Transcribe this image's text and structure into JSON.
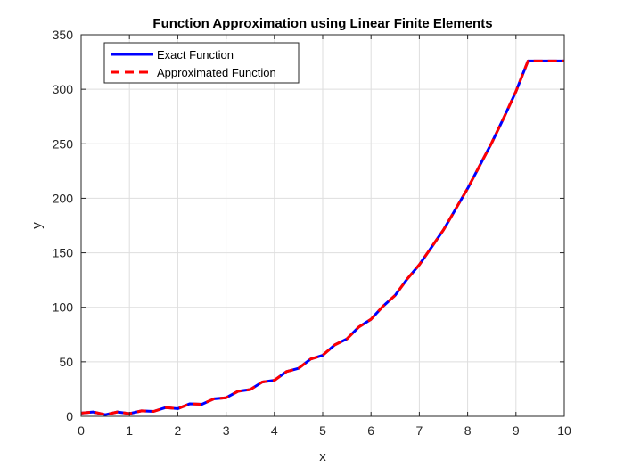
{
  "chart_data": {
    "type": "line",
    "title": "Function Approximation using Linear Finite Elements",
    "xlabel": "x",
    "ylabel": "y",
    "xlim": [
      0,
      10
    ],
    "ylim": [
      0,
      350
    ],
    "xticks": [
      0,
      1,
      2,
      3,
      4,
      5,
      6,
      7,
      8,
      9,
      10
    ],
    "yticks": [
      0,
      50,
      100,
      150,
      200,
      250,
      300,
      350
    ],
    "grid": true,
    "legend_position": "top-left",
    "series": [
      {
        "name": "Exact Function",
        "color": "#0000ff",
        "style": "solid",
        "x": [
          0,
          0.25,
          0.5,
          0.75,
          1,
          1.25,
          1.5,
          1.75,
          2,
          2.25,
          2.5,
          2.75,
          3,
          3.25,
          3.5,
          3.75,
          4,
          4.25,
          4.5,
          4.75,
          5,
          5.25,
          5.5,
          5.75,
          6,
          6.25,
          6.5,
          6.75,
          7,
          7.25,
          7.5,
          7.75,
          8,
          8.25,
          8.5,
          8.75,
          9,
          9.25,
          9.5,
          9.75,
          10
        ],
        "y": [
          3,
          4,
          1.5,
          4,
          2.5,
          5,
          4.5,
          8,
          7,
          11.5,
          11,
          16,
          17,
          23,
          24.5,
          31.5,
          33,
          41,
          44,
          52.5,
          56,
          65.5,
          71,
          82,
          89,
          101,
          111,
          126,
          139,
          155,
          171,
          190,
          209,
          230,
          251,
          274,
          298,
          326,
          326,
          326,
          326
        ]
      },
      {
        "name": "Approximated Function",
        "color": "#ff0000",
        "style": "dashed",
        "x": [
          0,
          0.25,
          0.5,
          0.75,
          1,
          1.25,
          1.5,
          1.75,
          2,
          2.25,
          2.5,
          2.75,
          3,
          3.25,
          3.5,
          3.75,
          4,
          4.25,
          4.5,
          4.75,
          5,
          5.25,
          5.5,
          5.75,
          6,
          6.25,
          6.5,
          6.75,
          7,
          7.25,
          7.5,
          7.75,
          8,
          8.25,
          8.5,
          8.75,
          9,
          9.25,
          9.5,
          9.75,
          10
        ],
        "y": [
          3,
          4,
          1.5,
          4,
          2.5,
          5,
          4.5,
          8,
          7,
          11.5,
          11,
          16,
          17,
          23,
          24.5,
          31.5,
          33,
          41,
          44,
          52.5,
          56,
          65.5,
          71,
          82,
          89,
          101,
          111,
          126,
          139,
          155,
          171,
          190,
          209,
          230,
          251,
          274,
          298,
          326,
          326,
          326,
          326
        ]
      }
    ]
  }
}
